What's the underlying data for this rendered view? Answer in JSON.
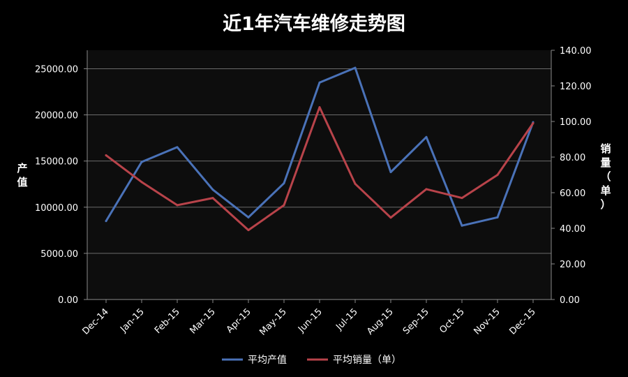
{
  "chart_data": {
    "type": "line",
    "title": "近1年汽车维修走势图",
    "categories": [
      "Dec-14",
      "Jan-15",
      "Feb-15",
      "Mar-15",
      "Apr-15",
      "May-15",
      "Jun-15",
      "Jul-15",
      "Aug-15",
      "Sep-15",
      "Oct-15",
      "Nov-15",
      "Dec-15"
    ],
    "y_left": {
      "label": "产值",
      "ylim": [
        0,
        27000
      ],
      "ticks": [
        "0.00",
        "5000.00",
        "10000.00",
        "15000.00",
        "20000.00",
        "25000.00"
      ]
    },
    "y_right": {
      "label": "销量（单）",
      "ylim": [
        0,
        140
      ],
      "ticks": [
        "0.00",
        "20.00",
        "40.00",
        "60.00",
        "80.00",
        "100.00",
        "120.00",
        "140.00"
      ]
    },
    "series": [
      {
        "name": "平均产值",
        "axis": "left",
        "color": "#4a72b8",
        "values": [
          8500,
          14900,
          16500,
          11900,
          8900,
          12600,
          23500,
          25100,
          13800,
          17600,
          8000,
          8900,
          19200
        ]
      },
      {
        "name": "平均销量（单）",
        "axis": "right",
        "color": "#b8434a",
        "values": [
          81,
          66,
          53,
          57,
          39,
          53,
          108,
          65,
          46,
          62,
          57,
          70,
          99
        ]
      }
    ],
    "grid": true,
    "legend": "bottom"
  }
}
